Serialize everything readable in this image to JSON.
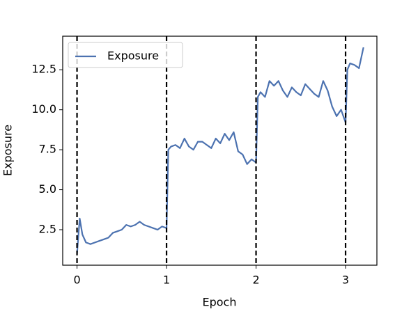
{
  "chart_data": {
    "type": "line",
    "xlabel": "Epoch",
    "ylabel": "Exposure",
    "x": [
      0,
      0.03,
      0.06,
      0.1,
      0.15,
      0.2,
      0.25,
      0.3,
      0.35,
      0.4,
      0.45,
      0.5,
      0.55,
      0.6,
      0.65,
      0.7,
      0.75,
      0.8,
      0.85,
      0.9,
      0.95,
      1.0,
      1.02,
      1.05,
      1.1,
      1.15,
      1.2,
      1.25,
      1.3,
      1.35,
      1.4,
      1.45,
      1.5,
      1.55,
      1.6,
      1.65,
      1.7,
      1.75,
      1.8,
      1.85,
      1.9,
      1.95,
      2.0,
      2.02,
      2.05,
      2.1,
      2.15,
      2.2,
      2.25,
      2.3,
      2.35,
      2.4,
      2.45,
      2.5,
      2.55,
      2.6,
      2.65,
      2.7,
      2.75,
      2.8,
      2.85,
      2.9,
      2.95,
      3.0,
      3.02,
      3.05,
      3.1,
      3.15,
      3.2
    ],
    "series": [
      {
        "name": "Exposure",
        "color": "#4c72b0",
        "values": [
          1.0,
          3.2,
          2.2,
          1.7,
          1.6,
          1.7,
          1.8,
          1.9,
          2.0,
          2.3,
          2.4,
          2.5,
          2.8,
          2.7,
          2.8,
          3.0,
          2.8,
          2.7,
          2.6,
          2.5,
          2.7,
          2.6,
          7.5,
          7.7,
          7.8,
          7.6,
          8.2,
          7.7,
          7.5,
          8.0,
          8.0,
          7.8,
          7.6,
          8.2,
          7.9,
          8.5,
          8.1,
          8.6,
          7.4,
          7.2,
          6.6,
          6.9,
          6.7,
          10.8,
          11.1,
          10.8,
          11.8,
          11.5,
          11.8,
          11.2,
          10.8,
          11.4,
          11.1,
          10.9,
          11.6,
          11.3,
          11.0,
          10.8,
          11.8,
          11.2,
          10.2,
          9.6,
          10.0,
          9.2,
          12.5,
          12.9,
          12.8,
          12.6,
          13.9
        ]
      }
    ],
    "vlines": [
      0,
      1,
      2,
      3
    ],
    "xlim": [
      -0.16,
      3.35
    ],
    "ylim": [
      0.28,
      14.6
    ],
    "xticks": [
      0,
      1,
      2,
      3
    ],
    "yticks": [
      2.5,
      {
        "value": 5,
        "label": "5.0"
      },
      7.5,
      {
        "value": 10,
        "label": "10.0"
      },
      12.5
    ],
    "legend": "upper left"
  }
}
